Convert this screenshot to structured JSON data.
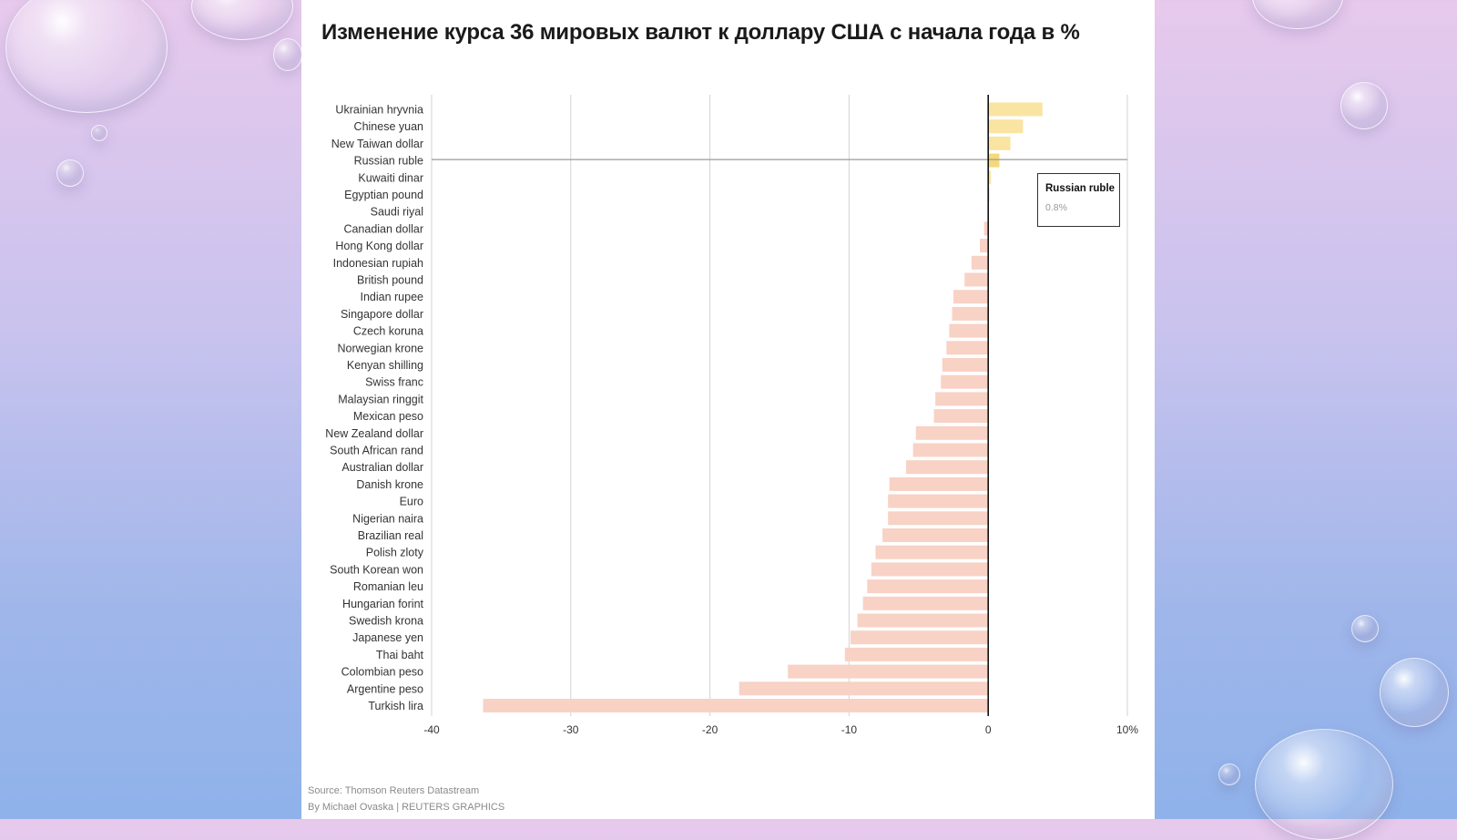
{
  "title": "Изменение курса 36 мировых валют к доллару США с начала года в %",
  "tooltip": {
    "name": "Russian ruble",
    "value": "0.8%"
  },
  "source_line": "Source: Thomson Reuters Datastream",
  "credit_line": "By Michael Ovaska | REUTERS GRAPHICS",
  "colors": {
    "positive_bar": "#f9e4a2",
    "highlight_bar": "#f4d97a",
    "negative_bar": "#f8d2c5",
    "gridline": "#d3d3d3",
    "zero_line": "#111111",
    "hover_line": "#9a9a9a",
    "label_text": "#333333"
  },
  "chart_data": {
    "type": "bar",
    "orientation": "horizontal",
    "title": "Изменение курса 36 мировых валют к доллару США с начала года в %",
    "xlim": [
      -40,
      10
    ],
    "x_ticks": [
      -40,
      -30,
      -20,
      -10,
      0,
      10
    ],
    "x_tick_labels": [
      "-40",
      "-30",
      "-20",
      "-10",
      "0",
      "10%"
    ],
    "grid": true,
    "highlighted_category": "Russian ruble",
    "categories": [
      "Ukrainian hryvnia",
      "Chinese yuan",
      "New Taiwan dollar",
      "Russian ruble",
      "Kuwaiti dinar",
      "Egyptian pound",
      "Saudi riyal",
      "Canadian dollar",
      "Hong Kong dollar",
      "Indonesian rupiah",
      "British pound",
      "Indian rupee",
      "Singapore dollar",
      "Czech koruna",
      "Norwegian krone",
      "Kenyan shilling",
      "Swiss franc",
      "Malaysian ringgit",
      "Mexican peso",
      "New Zealand dollar",
      "South African rand",
      "Australian dollar",
      "Danish krone",
      "Euro",
      "Nigerian naira",
      "Brazilian real",
      "Polish zloty",
      "South Korean won",
      "Romanian leu",
      "Hungarian forint",
      "Swedish krona",
      "Japanese yen",
      "Thai baht",
      "Colombian peso",
      "Argentine peso",
      "Turkish lira"
    ],
    "values": [
      3.9,
      2.5,
      1.6,
      0.8,
      0.2,
      0.1,
      0.0,
      -0.3,
      -0.6,
      -1.2,
      -1.7,
      -2.5,
      -2.6,
      -2.8,
      -3.0,
      -3.3,
      -3.4,
      -3.8,
      -3.9,
      -5.2,
      -5.4,
      -5.9,
      -7.1,
      -7.2,
      -7.2,
      -7.6,
      -8.1,
      -8.4,
      -8.7,
      -9.0,
      -9.4,
      -9.9,
      -10.3,
      -14.4,
      -17.9,
      -36.3
    ]
  }
}
